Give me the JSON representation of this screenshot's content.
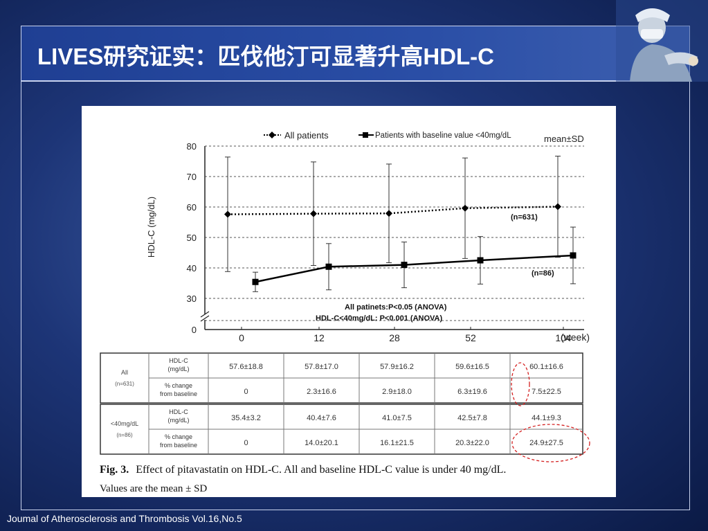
{
  "slide": {
    "title": "LIVES研究证实：匹伐他汀可显著升高HDL-C",
    "footer": "Joumal of Atherosclerosis and Thrombosis Vol.16,No.5"
  },
  "colors": {
    "title_bar": "#2a4ea6",
    "highlight_circle": "#d42020",
    "series": "#000000"
  },
  "chart_data": {
    "type": "line",
    "ylabel": "HDL-C (mg/dL)",
    "xlabel_unit": "(week)",
    "x_tick_labels": [
      "0",
      "12",
      "28",
      "52",
      "104"
    ],
    "x": [
      0,
      12,
      28,
      52,
      104
    ],
    "y_tick_labels": [
      "0",
      "30",
      "40",
      "50",
      "60",
      "70",
      "80"
    ],
    "y_ticks": [
      0,
      30,
      40,
      50,
      60,
      70,
      80
    ],
    "ylim": [
      0,
      80
    ],
    "y_axis_break": true,
    "grid": "dashed-horizontal",
    "legend": [
      {
        "label": "All patients",
        "marker": "diamond",
        "line": "dotted"
      },
      {
        "label": "Patients with baseline value <40mg/dL",
        "marker": "square",
        "line": "solid"
      }
    ],
    "legend_note": "mean±SD",
    "series": [
      {
        "name": "All patients",
        "n_label": "(n=631)",
        "values": [
          57.6,
          57.8,
          57.9,
          59.6,
          60.1
        ],
        "sd": [
          18.8,
          17.0,
          16.2,
          16.5,
          16.6
        ]
      },
      {
        "name": "Patients with baseline value <40mg/dL",
        "n_label": "(n=86)",
        "values": [
          35.4,
          40.4,
          41.0,
          42.5,
          44.1
        ],
        "sd": [
          3.2,
          7.6,
          7.5,
          7.8,
          9.3
        ]
      }
    ],
    "annotations": [
      "All patinets:P<0.05  (ANOVA)",
      "HDL-C<40mg/dL:  P<0.001  (ANOVA)"
    ],
    "table": {
      "groups": [
        {
          "label": "All",
          "sublabel": "(n=631)",
          "rows": [
            {
              "label": [
                "HDL-C",
                "(mg/dL)"
              ],
              "cells": [
                "57.6±18.8",
                "57.8±17.0",
                "57.9±16.2",
                "59.6±16.5",
                "60.1±16.6"
              ]
            },
            {
              "label": [
                "% change",
                "from baseline"
              ],
              "cells": [
                "0",
                "2.3±16.6",
                "2.9±18.0",
                "6.3±19.6",
                "7.5±22.5"
              ]
            }
          ]
        },
        {
          "label": "<40mg/dL",
          "sublabel": "(n=86)",
          "rows": [
            {
              "label": [
                "HDL-C",
                "(mg/dL)"
              ],
              "cells": [
                "35.4±3.2",
                "40.4±7.6",
                "41.0±7.5",
                "42.5±7.8",
                "44.1±9.3"
              ]
            },
            {
              "label": [
                "% change",
                "from baseline"
              ],
              "cells": [
                "0",
                "14.0±20.1",
                "16.1±21.5",
                "20.3±22.0",
                "24.9±27.5"
              ]
            }
          ]
        }
      ]
    },
    "caption": {
      "fig": "Fig. 3.",
      "line1": "Effect of pitavastatin on HDL-C. All and baseline HDL-C value is under 40 mg/dL.",
      "line2": "Values are the mean ± SD"
    }
  }
}
